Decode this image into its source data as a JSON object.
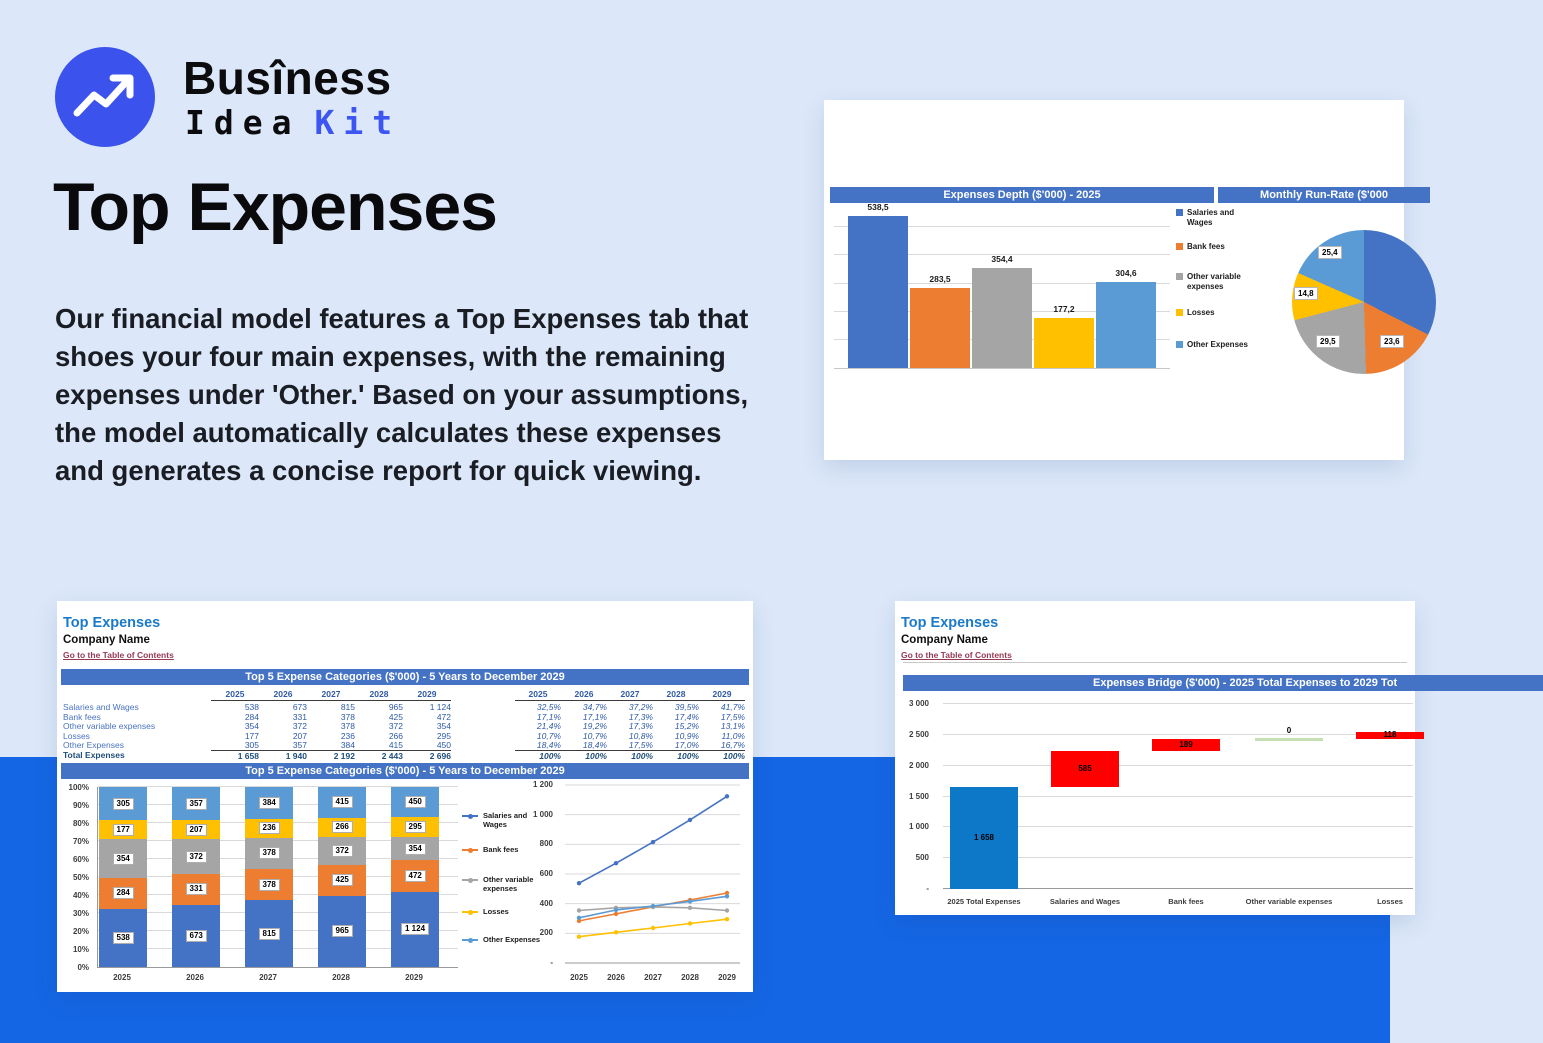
{
  "brand": {
    "line1": "Busîness",
    "line2": "Idea",
    "line2_accent": "Kit"
  },
  "hero": {
    "title": "Top Expenses",
    "description": "Our financial model features a Top Expenses tab that shoes your four main expenses, with the remaining expenses under 'Other.' Based on your assumptions, the model automatically calculates these expenses and generates a concise report for quick viewing."
  },
  "colors": {
    "accent_brand": "#3b52ec",
    "bottom_band": "#1566e4",
    "excel_header": "#4472c4",
    "series_blue": "#4472C4",
    "series_orange": "#ED7D31",
    "series_gray": "#A5A5A5",
    "series_yellow": "#FFC000",
    "series_lightblue": "#5B9BD5",
    "waterfall_blue": "#0e78c8",
    "waterfall_red": "#ff0000",
    "waterfall_green": "#c6e0b4",
    "sheet_title_blue": "#1b7ac9",
    "link_maroon": "#943a54"
  },
  "depth_card": {
    "header_left": "Expenses Depth ($'000) - 2025",
    "header_right": "Monthly Run-Rate ($'000"
  },
  "sheet_card": {
    "title": "Top Expenses",
    "company": "Company Name",
    "link": "Go to the Table of Contents",
    "table_header": "Top 5 Expense Categories ($'000) - 5 Years to December 2029",
    "chart_header": "Top 5 Expense Categories ($'000) - 5 Years to December 2029"
  },
  "bridge_card": {
    "title": "Top Expenses",
    "company": "Company Name",
    "link": "Go to the Table of Contents",
    "chart_header": "Expenses Bridge ($'000) - 2025 Total Expenses to 2029 Tot"
  },
  "table": {
    "years": [
      "2025",
      "2026",
      "2027",
      "2028",
      "2029"
    ],
    "rows": [
      {
        "label": "Salaries and Wages",
        "values": [
          "538",
          "673",
          "815",
          "965",
          "1 124"
        ],
        "pcts": [
          "32,5%",
          "34,7%",
          "37,2%",
          "39,5%",
          "41,7%"
        ]
      },
      {
        "label": "Bank fees",
        "values": [
          "284",
          "331",
          "378",
          "425",
          "472"
        ],
        "pcts": [
          "17,1%",
          "17,1%",
          "17,3%",
          "17,4%",
          "17,5%"
        ]
      },
      {
        "label": "Other variable expenses",
        "values": [
          "354",
          "372",
          "378",
          "372",
          "354"
        ],
        "pcts": [
          "21,4%",
          "19,2%",
          "17,3%",
          "15,2%",
          "13,1%"
        ]
      },
      {
        "label": "Losses",
        "values": [
          "177",
          "207",
          "236",
          "266",
          "295"
        ],
        "pcts": [
          "10,7%",
          "10,7%",
          "10,8%",
          "10,9%",
          "11,0%"
        ]
      },
      {
        "label": "Other Expenses",
        "values": [
          "305",
          "357",
          "384",
          "415",
          "450"
        ],
        "pcts": [
          "18,4%",
          "18,4%",
          "17,5%",
          "17,0%",
          "16,7%"
        ]
      }
    ],
    "total": {
      "label": "Total Expenses",
      "values": [
        "1 658",
        "1 940",
        "2 192",
        "2 443",
        "2 696"
      ],
      "pcts": [
        "100%",
        "100%",
        "100%",
        "100%",
        "100%"
      ]
    }
  },
  "chart_data": [
    {
      "type": "bar",
      "title": "Expenses Depth ($'000) - 2025",
      "categories": [
        "Salaries and Wages",
        "Bank fees",
        "Other variable expenses",
        "Losses",
        "Other Expenses"
      ],
      "values": [
        538.5,
        283.5,
        354.4,
        177.2,
        304.6
      ],
      "labels": [
        "538,5",
        "283,5",
        "354,4",
        "177,2",
        "304,6"
      ],
      "colors": [
        "#4472C4",
        "#ED7D31",
        "#A5A5A5",
        "#FFC000",
        "#5B9BD5"
      ],
      "ylim": [
        0,
        600
      ],
      "grid_step": 100,
      "legend_position": "right"
    },
    {
      "type": "pie",
      "title": "Monthly Run-Rate ($'000",
      "slices": [
        {
          "name": "Salaries and Wages",
          "value": 44.9,
          "label": "",
          "color": "#4472C4"
        },
        {
          "name": "Bank fees",
          "value": 23.6,
          "label": "23,6",
          "color": "#ED7D31"
        },
        {
          "name": "Other variable expenses",
          "value": 29.5,
          "label": "29,5",
          "color": "#A5A5A5"
        },
        {
          "name": "Losses",
          "value": 14.8,
          "label": "14,8",
          "color": "#FFC000"
        },
        {
          "name": "Other Expenses",
          "value": 25.4,
          "label": "25,4",
          "color": "#5B9BD5"
        }
      ],
      "start_angle_deg": 0,
      "clockwise": true
    },
    {
      "type": "stacked_bar_100",
      "title": "Top 5 Expense Categories ($'000) - 5 Years to December 2029",
      "categories": [
        "2025",
        "2026",
        "2027",
        "2028",
        "2029"
      ],
      "y_ticks": [
        "0%",
        "10%",
        "20%",
        "30%",
        "40%",
        "50%",
        "60%",
        "70%",
        "80%",
        "90%",
        "100%"
      ],
      "series": [
        {
          "name": "Salaries and Wages",
          "color": "#4472C4",
          "values": [
            538,
            673,
            815,
            965,
            1124
          ],
          "labels": [
            "538",
            "673",
            "815",
            "965",
            "1 124"
          ]
        },
        {
          "name": "Bank fees",
          "color": "#ED7D31",
          "values": [
            284,
            331,
            378,
            425,
            472
          ],
          "labels": [
            "284",
            "331",
            "378",
            "425",
            "472"
          ]
        },
        {
          "name": "Other variable expenses",
          "color": "#A5A5A5",
          "values": [
            354,
            372,
            378,
            372,
            354
          ],
          "labels": [
            "354",
            "372",
            "378",
            "372",
            "354"
          ]
        },
        {
          "name": "Losses",
          "color": "#FFC000",
          "values": [
            177,
            207,
            236,
            266,
            295
          ],
          "labels": [
            "177",
            "207",
            "236",
            "266",
            "295"
          ]
        },
        {
          "name": "Other Expenses",
          "color": "#5B9BD5",
          "values": [
            305,
            357,
            384,
            415,
            450
          ],
          "labels": [
            "305",
            "357",
            "384",
            "415",
            "450"
          ]
        }
      ]
    },
    {
      "type": "line",
      "categories": [
        "2025",
        "2026",
        "2027",
        "2028",
        "2029"
      ],
      "ylim": [
        0,
        1200
      ],
      "y_ticks": [
        "-",
        "200",
        "400",
        "600",
        "800",
        "1 000",
        "1 200"
      ],
      "series": [
        {
          "name": "Salaries and Wages",
          "color": "#4472C4",
          "values": [
            538,
            673,
            815,
            965,
            1124
          ]
        },
        {
          "name": "Bank fees",
          "color": "#ED7D31",
          "values": [
            284,
            331,
            378,
            425,
            472
          ]
        },
        {
          "name": "Other variable expenses",
          "color": "#A5A5A5",
          "values": [
            354,
            372,
            378,
            372,
            354
          ]
        },
        {
          "name": "Losses",
          "color": "#FFC000",
          "values": [
            177,
            207,
            236,
            266,
            295
          ]
        },
        {
          "name": "Other Expenses",
          "color": "#5B9BD5",
          "values": [
            305,
            357,
            384,
            415,
            450
          ]
        }
      ]
    },
    {
      "type": "waterfall",
      "title": "Expenses Bridge ($'000) - 2025 Total Expenses to 2029 Tot",
      "categories": [
        "2025 Total Expenses",
        "Salaries and Wages",
        "Bank fees",
        "Other variable expenses",
        "Losses"
      ],
      "ylim": [
        0,
        3000
      ],
      "y_ticks": [
        "-",
        "500",
        "1 000",
        "1 500",
        "2 000",
        "2 500",
        "3 000"
      ],
      "bars": [
        {
          "label": "1 658",
          "start": 0,
          "end": 1658,
          "color": "#0e78c8",
          "style": "bar"
        },
        {
          "label": "585",
          "start": 1658,
          "end": 2243,
          "color": "#ff0000",
          "style": "bar"
        },
        {
          "label": "189",
          "start": 2243,
          "end": 2432,
          "color": "#ff0000",
          "style": "bar"
        },
        {
          "label": "0",
          "start": 2432,
          "end": 2432,
          "color": "#c6e0b4",
          "style": "connector"
        },
        {
          "label": "118",
          "start": 2432,
          "end": 2550,
          "color": "#ff0000",
          "style": "bar"
        }
      ]
    }
  ]
}
